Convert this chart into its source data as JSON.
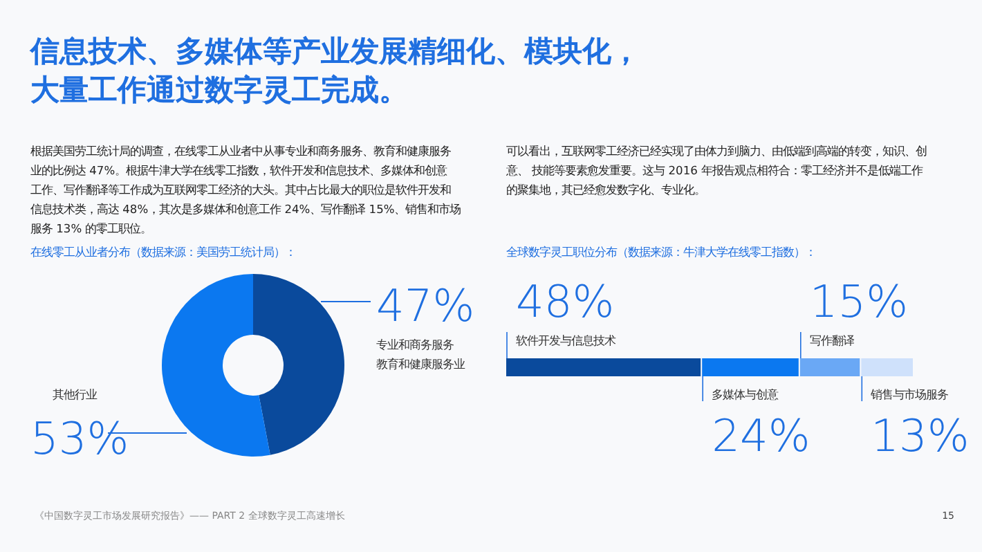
{
  "chart_data": [
    {
      "type": "other",
      "title": "信息技术、多媒体等产业发展精细化、模块化，大量工作通过数字灵工完成。",
      "annotations": [
        "根据美国劳工统计局的调查，在线零工从业者中从事专业和商务服务、教育和健康服务业的比例达 47%。根据牛津大学在线零工指数，软件开发和信息技术、多媒体和创意工作、写作翻译等工作成为互联网零工经济的大头。其中占比最大的职位是软件开发和信息技术类，高达 48%，其次是多媒体和创意工作 24%、写作翻译 15%、销售和市场服务 13% 的零工职位。",
        "可以看出，互联网零工经济已经实现了由体力到脑力、由低端到高端的转变，知识、创意、 技能等要素愈发重要。这与 2016 年报告观点相符合：零工经济并不是低端工作的聚集地，其已经愈发数字化、专业化。",
        "《中国数字灵工市场发展研究报告》—— PART 2 全球数字灵工高速增长",
        "15"
      ]
    },
    {
      "type": "donut",
      "title": "在线零工从业者分布（数据来源：美国劳工统计局）：",
      "categories": [
        "专业和商务服务教育和健康服务业",
        "其他行业"
      ],
      "values": [
        47,
        53
      ],
      "colors": [
        "#0a4a9c",
        "#0b78f0"
      ],
      "value_labels": [
        "47%",
        "53%"
      ]
    },
    {
      "type": "bar",
      "title": "全球数字灵工职位分布（数据来源：牛津大学在线零工指数）：",
      "orientation": "horizontal",
      "stacked": true,
      "categories": [
        null
      ],
      "series": [
        {
          "name": "软件开发与信息技术",
          "color": "#0a4a9c",
          "values": [
            48
          ],
          "value_labels": [
            "48%"
          ]
        },
        {
          "name": "多媒体与创意",
          "color": "#0b78f0",
          "values": [
            24
          ],
          "value_labels": [
            "24%"
          ]
        },
        {
          "name": "写作翻译",
          "color": "#6aa8f5",
          "values": [
            15
          ],
          "value_labels": [
            "15%"
          ]
        },
        {
          "name": "销售与市场服务",
          "color": "#cfe1fb",
          "values": [
            13
          ],
          "value_labels": [
            "13%"
          ]
        }
      ]
    }
  ]
}
